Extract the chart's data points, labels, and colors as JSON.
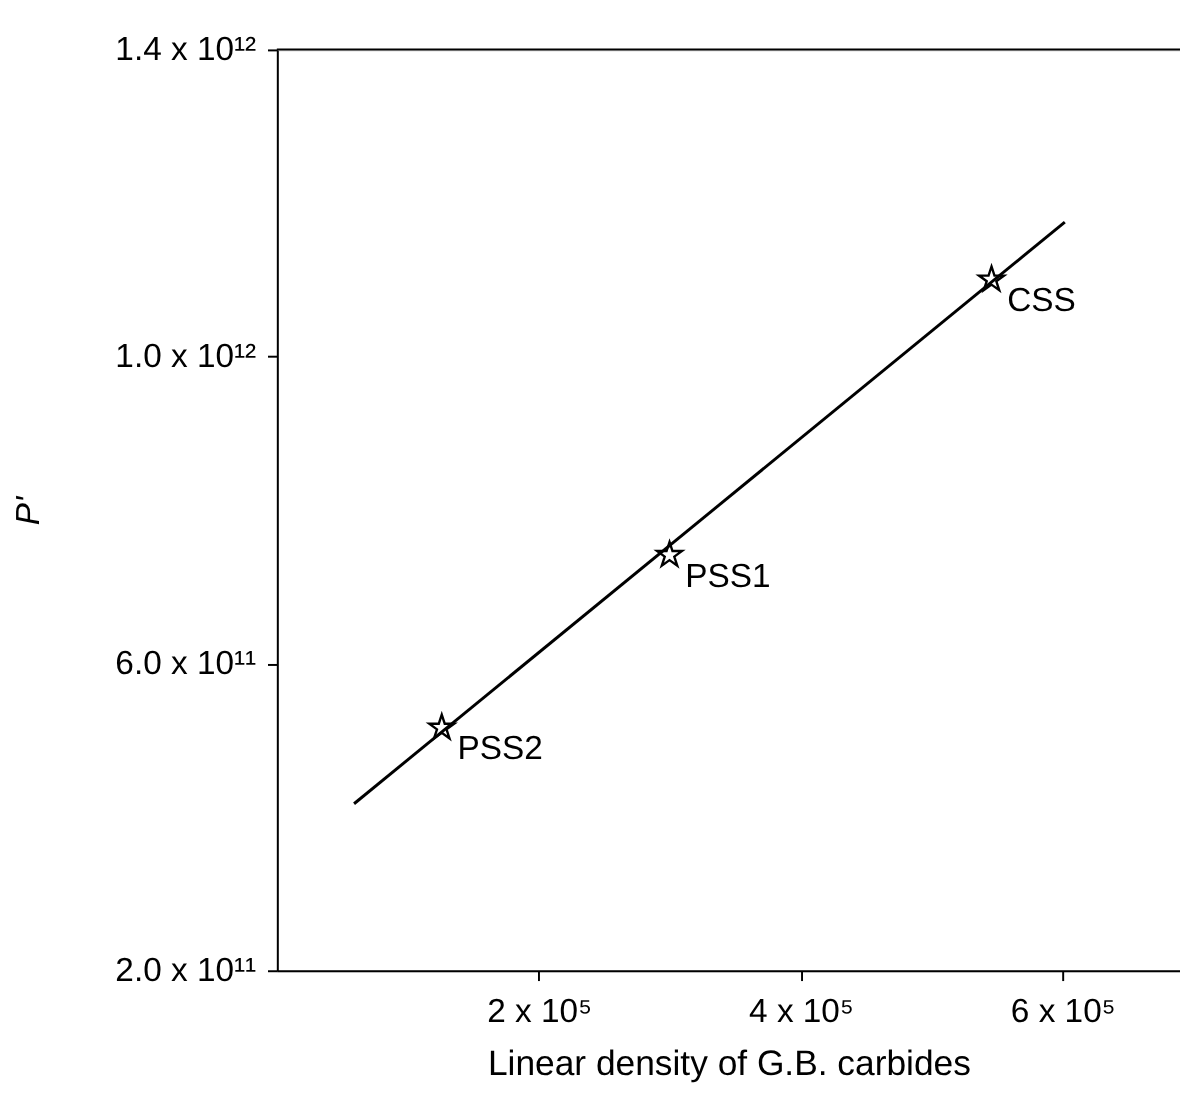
{
  "chart_data": {
    "type": "scatter",
    "xlabel": "Linear density of G.B. carbides",
    "ylabel": "P'",
    "xlim": [
      0,
      690000
    ],
    "ylim": [
      200000000000,
      1400000000000
    ],
    "xticks": [
      {
        "value": 200000,
        "label": "2 x 10⁵"
      },
      {
        "value": 400000,
        "label": "4 x 10⁵"
      },
      {
        "value": 600000,
        "label": "6 x 10⁵"
      }
    ],
    "yticks": [
      {
        "value": 200000000000,
        "label": "2.0 x 10¹¹"
      },
      {
        "value": 600000000000,
        "label": "6.0 x 10¹¹"
      },
      {
        "value": 1000000000000,
        "label": "1.0 x 10¹²"
      },
      {
        "value": 1400000000000,
        "label": "1.4 x 10¹²"
      }
    ],
    "grid": false,
    "series": [
      {
        "color": "#000000",
        "marker": "star",
        "x": [
          126000,
          300000,
          546000
        ],
        "values": [
          516000000000,
          741000000000,
          1100000000000
        ]
      },
      {
        "type": "line",
        "color": "#000000",
        "marker": "none",
        "line_style": "solid",
        "x": [
          59000,
          602000
        ],
        "values": [
          417000000000,
          1175000000000
        ]
      }
    ],
    "annotations": [
      {
        "text": "PSS2",
        "x": 126000,
        "y": 516000000000
      },
      {
        "text": "PSS1",
        "x": 300000,
        "y": 741000000000
      },
      {
        "text": "CSS",
        "x": 546000,
        "y": 1100000000000
      }
    ]
  }
}
